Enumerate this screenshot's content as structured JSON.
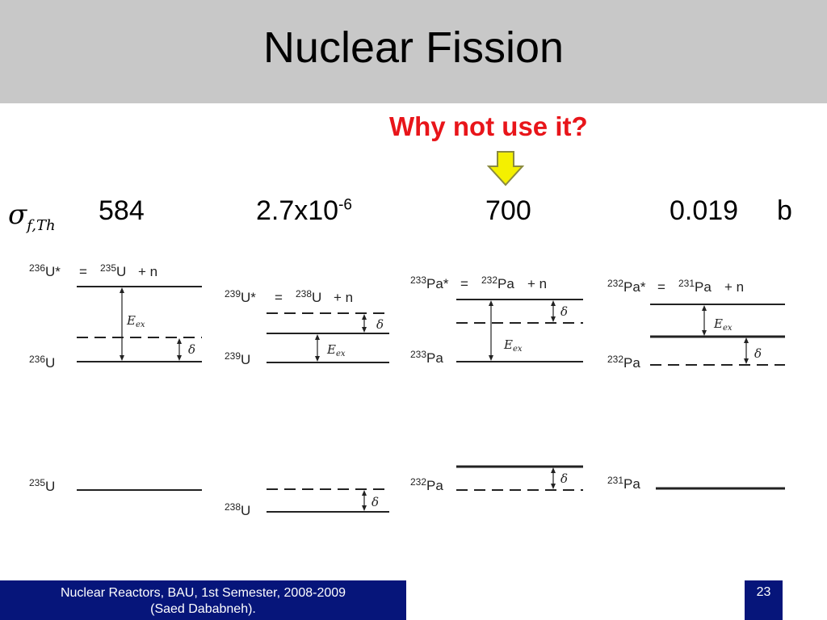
{
  "slide": {
    "title": "Nuclear Fission",
    "question": "Why not use it?",
    "arrow_color": "#f4f000",
    "cross_section": {
      "symbol": "σ",
      "subscript": "f,Th",
      "values": [
        {
          "base": "584",
          "sup": ""
        },
        {
          "base": "2.7x10",
          "sup": "-6"
        },
        {
          "base": "700",
          "sup": ""
        },
        {
          "base": "0.019",
          "sup": ""
        }
      ],
      "unit": "b"
    },
    "diagrams": [
      {
        "excited": {
          "mass": "236",
          "sym": "U*"
        },
        "equals": "=",
        "target": {
          "mass": "235",
          "sym": "U"
        },
        "plus": "+ n",
        "compound": {
          "mass": "236",
          "sym": "U"
        },
        "ground": {
          "mass": "235",
          "sym": "U"
        },
        "e_label": "E",
        "e_sub": "ex",
        "delta": "δ"
      },
      {
        "excited": {
          "mass": "239",
          "sym": "U*"
        },
        "equals": "=",
        "target": {
          "mass": "238",
          "sym": "U"
        },
        "plus": "+ n",
        "compound": {
          "mass": "239",
          "sym": "U"
        },
        "ground": {
          "mass": "238",
          "sym": "U"
        },
        "e_label": "E",
        "e_sub": "ex",
        "delta": "δ"
      },
      {
        "excited": {
          "mass": "233",
          "sym": "Pa*"
        },
        "equals": "=",
        "target": {
          "mass": "232",
          "sym": "Pa"
        },
        "plus": "+ n",
        "compound": {
          "mass": "233",
          "sym": "Pa"
        },
        "ground": {
          "mass": "232",
          "sym": "Pa"
        },
        "e_label": "E",
        "e_sub": "ex",
        "delta": "δ"
      },
      {
        "excited": {
          "mass": "232",
          "sym": "Pa*"
        },
        "equals": "=",
        "target": {
          "mass": "231",
          "sym": "Pa"
        },
        "plus": "+ n",
        "compound": {
          "mass": "232",
          "sym": "Pa"
        },
        "ground": {
          "mass": "231",
          "sym": "Pa"
        },
        "e_label": "E",
        "e_sub": "ex",
        "delta": "δ"
      }
    ],
    "footer": {
      "left_line1": "Nuclear Reactors, BAU, 1st Semester, 2008-2009",
      "left_line2": "(Saed Dababneh).",
      "page_number": "23"
    }
  }
}
